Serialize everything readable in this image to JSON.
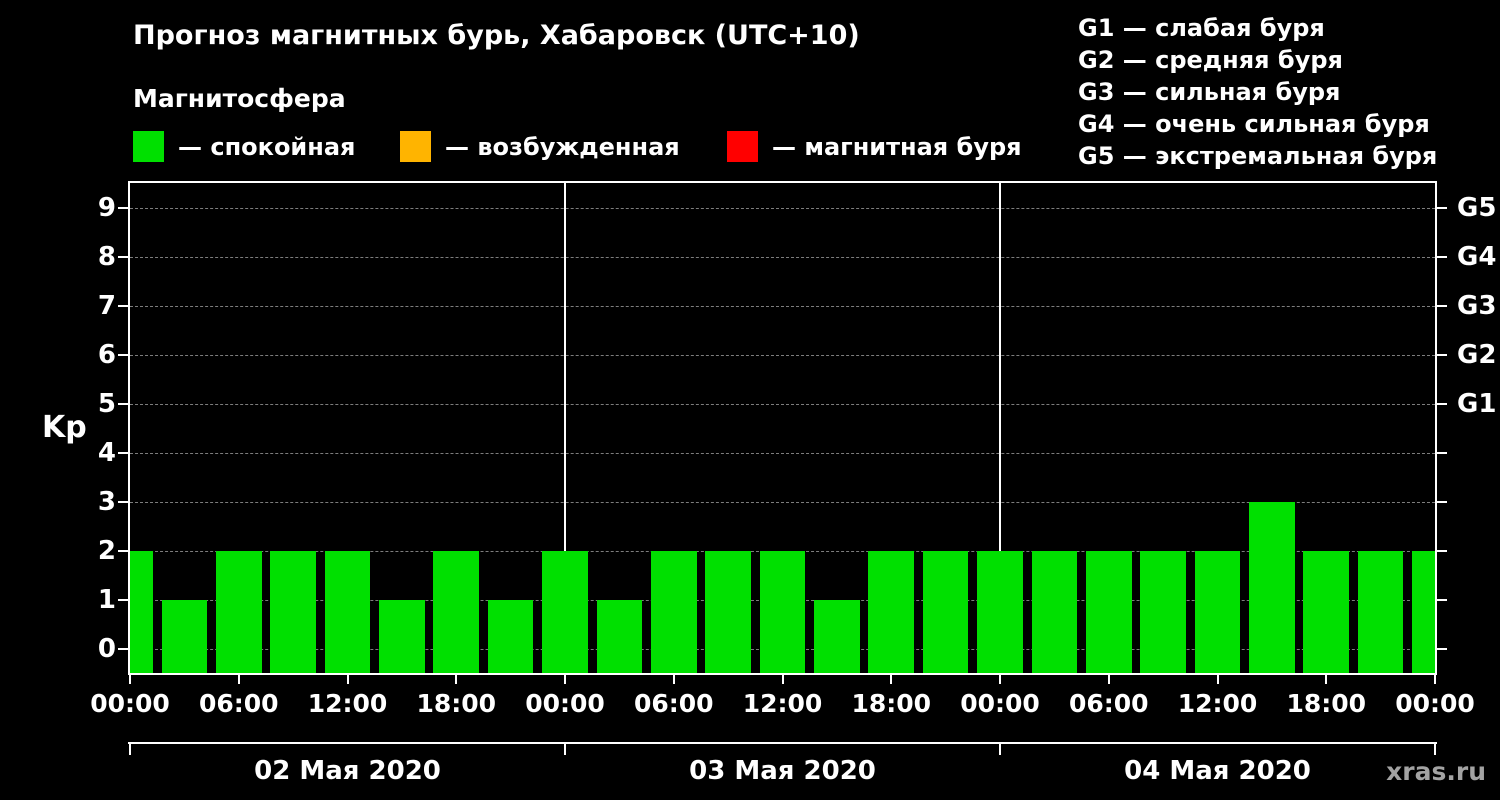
{
  "title": "Прогноз магнитных бурь, Хабаровск (UTC+10)",
  "subtitle": "Магнитосфера",
  "legend": {
    "items": [
      {
        "label": "— спокойная",
        "color": "#00e000"
      },
      {
        "label": "— возбужденная",
        "color": "#ffb400"
      },
      {
        "label": "— магнитная буря",
        "color": "#ff0000"
      }
    ]
  },
  "g_legend": [
    "G1 — слабая буря",
    "G2 — средняя буря",
    "G3 — сильная буря",
    "G4 — очень сильная буря",
    "G5 — экстремальная буря"
  ],
  "watermark": "xras.ru",
  "chart_data": {
    "type": "bar",
    "title": "Прогноз магнитных бурь, Хабаровск (UTC+10)",
    "ylabel": "Kp",
    "ylim": [
      -0.5,
      9.5
    ],
    "x_range_hours": [
      0,
      72
    ],
    "bar_interval_hours": 3,
    "bar_color": "#00e000",
    "grid": true,
    "y_ticks": [
      0,
      1,
      2,
      3,
      4,
      5,
      6,
      7,
      8,
      9
    ],
    "g_scale": [
      {
        "kp": 5,
        "label": "G1"
      },
      {
        "kp": 6,
        "label": "G2"
      },
      {
        "kp": 7,
        "label": "G3"
      },
      {
        "kp": 8,
        "label": "G4"
      },
      {
        "kp": 9,
        "label": "G5"
      }
    ],
    "bars": {
      "hours": [
        0,
        3,
        6,
        9,
        12,
        15,
        18,
        21,
        24,
        27,
        30,
        33,
        36,
        39,
        42,
        45,
        48,
        51,
        54,
        57,
        60,
        63,
        66,
        69,
        72
      ],
      "kp_values": [
        2,
        1,
        2,
        2,
        2,
        1,
        2,
        1,
        2,
        1,
        2,
        2,
        2,
        1,
        2,
        2,
        2,
        2,
        2,
        2,
        2,
        3,
        2,
        2,
        2
      ]
    },
    "x_ticks": [
      {
        "hour": 0,
        "label": "00:00"
      },
      {
        "hour": 6,
        "label": "06:00"
      },
      {
        "hour": 12,
        "label": "12:00"
      },
      {
        "hour": 18,
        "label": "18:00"
      },
      {
        "hour": 24,
        "label": "00:00"
      },
      {
        "hour": 30,
        "label": "06:00"
      },
      {
        "hour": 36,
        "label": "12:00"
      },
      {
        "hour": 42,
        "label": "18:00"
      },
      {
        "hour": 48,
        "label": "00:00"
      },
      {
        "hour": 54,
        "label": "06:00"
      },
      {
        "hour": 60,
        "label": "12:00"
      },
      {
        "hour": 66,
        "label": "18:00"
      },
      {
        "hour": 72,
        "label": "00:00"
      }
    ],
    "day_boundaries_hours": [
      0,
      24,
      48,
      72
    ],
    "days": [
      {
        "label": "02 Мая 2020",
        "center_hour": 12
      },
      {
        "label": "03 Мая 2020",
        "center_hour": 36
      },
      {
        "label": "04 Мая 2020",
        "center_hour": 60
      }
    ]
  }
}
